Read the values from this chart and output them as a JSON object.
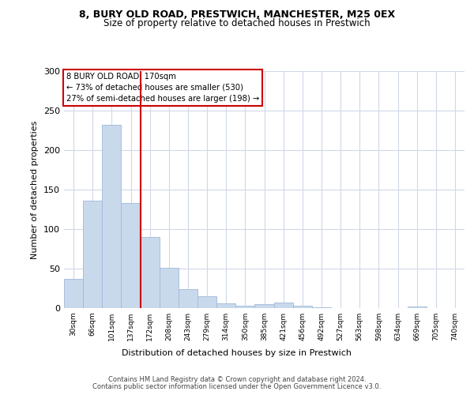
{
  "title_line1": "8, BURY OLD ROAD, PRESTWICH, MANCHESTER, M25 0EX",
  "title_line2": "Size of property relative to detached houses in Prestwich",
  "xlabel": "Distribution of detached houses by size in Prestwich",
  "ylabel": "Number of detached properties",
  "footer_line1": "Contains HM Land Registry data © Crown copyright and database right 2024.",
  "footer_line2": "Contains public sector information licensed under the Open Government Licence v3.0.",
  "annotation_line1": "8 BURY OLD ROAD: 170sqm",
  "annotation_line2": "← 73% of detached houses are smaller (530)",
  "annotation_line3": "27% of semi-detached houses are larger (198) →",
  "bar_labels": [
    "30sqm",
    "66sqm",
    "101sqm",
    "137sqm",
    "172sqm",
    "208sqm",
    "243sqm",
    "279sqm",
    "314sqm",
    "350sqm",
    "385sqm",
    "421sqm",
    "456sqm",
    "492sqm",
    "527sqm",
    "563sqm",
    "598sqm",
    "634sqm",
    "669sqm",
    "705sqm",
    "740sqm"
  ],
  "bar_values": [
    37,
    136,
    232,
    133,
    90,
    51,
    24,
    15,
    6,
    3,
    5,
    7,
    3,
    1,
    0,
    0,
    0,
    0,
    2,
    0,
    0
  ],
  "bar_color": "#c9d9ec",
  "bar_edgecolor": "#a0b8d8",
  "reference_line_x": 4.0,
  "reference_line_color": "#cc0000",
  "ylim": [
    0,
    300
  ],
  "yticks": [
    0,
    50,
    100,
    150,
    200,
    250,
    300
  ],
  "bg_color": "#ffffff",
  "grid_color": "#d0d8e8",
  "annotation_box_edgecolor": "#cc0000",
  "annotation_box_facecolor": "#ffffff"
}
